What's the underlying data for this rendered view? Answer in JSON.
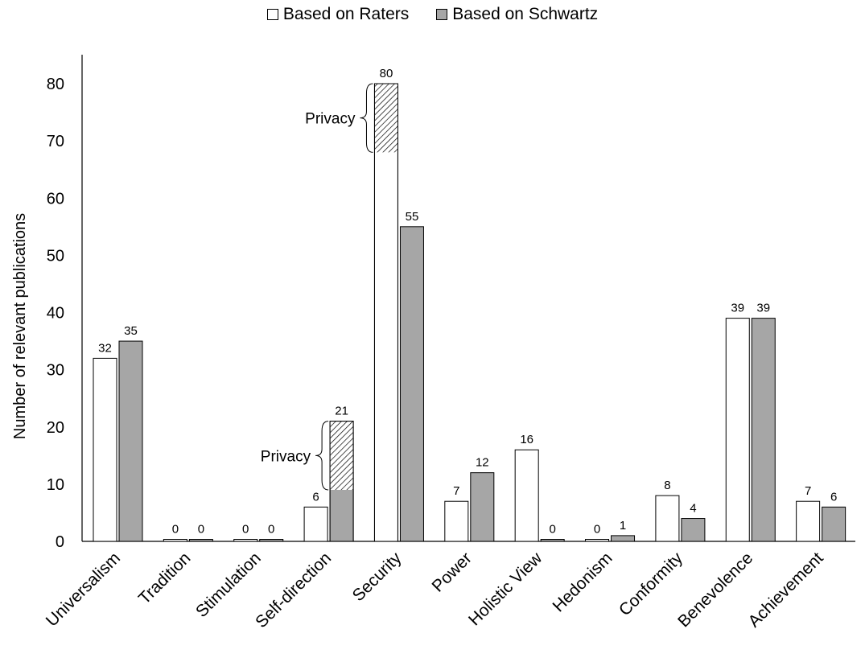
{
  "chart_data": {
    "type": "bar",
    "title": "",
    "xlabel": "",
    "ylabel": "Number of relevant publications",
    "ylim": [
      0,
      85
    ],
    "yticks": [
      0,
      10,
      20,
      30,
      40,
      50,
      60,
      70,
      80
    ],
    "grid": false,
    "legend_position": "top-center",
    "categories": [
      "Universalism",
      "Tradition",
      "Stimulation",
      "Self-direction",
      "Security",
      "Power",
      "Holistic View",
      "Hedonism",
      "Conformity",
      "Benevolence",
      "Achievement"
    ],
    "series": [
      {
        "name": "Based on Raters",
        "color": "#ffffff",
        "values": [
          32,
          0,
          0,
          6,
          80,
          7,
          16,
          0,
          8,
          39,
          7
        ]
      },
      {
        "name": "Based on Schwartz",
        "color": "#a6a6a6",
        "values": [
          35,
          0,
          0,
          21,
          55,
          12,
          0,
          1,
          4,
          39,
          6
        ]
      }
    ],
    "annotations": [
      {
        "text": "Privacy",
        "category": "Security",
        "series": "Based on Raters",
        "from": 68,
        "to": 80
      },
      {
        "text": "Privacy",
        "category": "Self-direction",
        "series": "Based on Schwartz",
        "from": 9,
        "to": 21
      }
    ]
  }
}
